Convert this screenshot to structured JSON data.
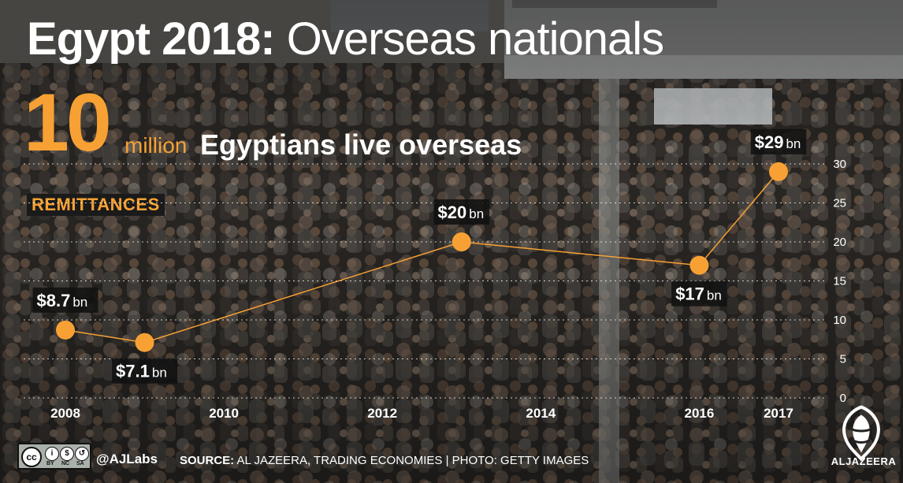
{
  "headline": {
    "bold": "Egypt 2018:",
    "light": "Overseas nationals"
  },
  "stat": {
    "number": "10",
    "unit": "million",
    "text": "Egyptians live overseas"
  },
  "section_label": "REMITTANCES",
  "colors": {
    "accent": "#f7a134",
    "text": "#ffffff",
    "badge_bg": "#1a1a1a"
  },
  "chart_data": {
    "type": "line",
    "title": "",
    "xlabel": "",
    "ylabel": "",
    "x_ticks": [
      "2008",
      "2010",
      "2012",
      "2014",
      "2016",
      "2017"
    ],
    "y_ticks": [
      "0",
      "5",
      "10",
      "15",
      "20",
      "25",
      "30"
    ],
    "ylim": [
      0,
      30
    ],
    "grid": true,
    "series": [
      {
        "points": [
          {
            "x": 2008,
            "y": 8.7,
            "label": "$8.7",
            "unit": "bn"
          },
          {
            "x": 2009,
            "y": 7.1,
            "label": "$7.1",
            "unit": "bn"
          },
          {
            "x": 2013,
            "y": 20,
            "label": "$20",
            "unit": "bn"
          },
          {
            "x": 2016,
            "y": 17,
            "label": "$17",
            "unit": "bn"
          },
          {
            "x": 2017,
            "y": 29,
            "label": "$29",
            "unit": "bn"
          }
        ]
      }
    ]
  },
  "footer": {
    "license": {
      "symbol": "cc",
      "icons": [
        "BY",
        "NC",
        "SA"
      ]
    },
    "handle": "@AJLabs",
    "source_label": "SOURCE:",
    "source_text": "AL JAZEERA, TRADING ECONOMIES | PHOTO: GETTY IMAGES"
  },
  "brand": {
    "name": "ALJAZEERA",
    "icon": "al-jazeera-logo-icon"
  }
}
